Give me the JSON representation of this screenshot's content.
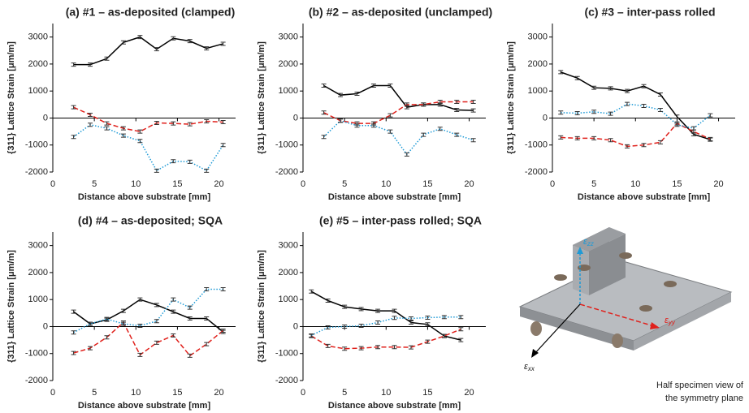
{
  "chart_data": [
    {
      "type": "line",
      "title": "(a) #1 – as-deposited (clamped)",
      "x_label": "Distance above substrate [mm]",
      "y_label": "{311} Lattice Strain [μm/m]",
      "x": [
        2.5,
        4.5,
        6.5,
        8.5,
        10.5,
        12.5,
        14.5,
        16.5,
        18.5,
        20.5
      ],
      "series": [
        {
          "color": "#000000",
          "dash": "solid",
          "values": [
            1980,
            1980,
            2200,
            2800,
            3000,
            2550,
            2950,
            2850,
            2580,
            2750
          ],
          "errors": [
            60,
            60,
            60,
            60,
            60,
            60,
            60,
            60,
            60,
            60
          ]
        },
        {
          "color": "#e0201b",
          "dash": "dashed",
          "values": [
            400,
            120,
            -200,
            -380,
            -500,
            -180,
            -200,
            -230,
            -120,
            -150
          ],
          "errors": [
            60,
            60,
            60,
            60,
            60,
            60,
            60,
            60,
            60,
            60
          ]
        },
        {
          "color": "#1e9ad6",
          "dash": "dotted",
          "values": [
            -700,
            -250,
            -380,
            -650,
            -850,
            -1950,
            -1600,
            -1620,
            -1950,
            -1000
          ],
          "errors": [
            60,
            60,
            60,
            60,
            60,
            60,
            60,
            60,
            60,
            60
          ]
        }
      ],
      "xlim": [
        0,
        22
      ],
      "xticks": [
        0,
        5,
        10,
        15,
        20
      ],
      "ylim": [
        -2000,
        3500
      ],
      "yticks": [
        -2000,
        -1000,
        0,
        1000,
        2000,
        3000
      ],
      "grid": false
    },
    {
      "type": "line",
      "title": "(b) #2 – as-deposited (unclamped)",
      "x_label": "Distance above substrate [mm]",
      "y_label": "{311} Lattice Strain [μm/m]",
      "x": [
        2.5,
        4.5,
        6.5,
        8.5,
        10.5,
        12.5,
        14.5,
        16.5,
        18.5,
        20.5
      ],
      "series": [
        {
          "color": "#000000",
          "dash": "solid",
          "values": [
            1200,
            850,
            900,
            1200,
            1200,
            400,
            500,
            500,
            300,
            280
          ],
          "errors": [
            60,
            60,
            60,
            60,
            60,
            60,
            60,
            60,
            60,
            60
          ]
        },
        {
          "color": "#e0201b",
          "dash": "dashed",
          "values": [
            200,
            -100,
            -200,
            -200,
            100,
            500,
            500,
            600,
            600,
            600
          ],
          "errors": [
            60,
            60,
            60,
            60,
            60,
            60,
            60,
            60,
            60,
            60
          ]
        },
        {
          "color": "#1e9ad6",
          "dash": "dotted",
          "values": [
            -700,
            -100,
            -280,
            -280,
            -500,
            -1350,
            -620,
            -400,
            -620,
            -820
          ],
          "errors": [
            60,
            60,
            60,
            60,
            60,
            60,
            60,
            60,
            60,
            60
          ]
        }
      ],
      "xlim": [
        0,
        22
      ],
      "xticks": [
        0,
        5,
        10,
        15,
        20
      ],
      "ylim": [
        -2000,
        3500
      ],
      "yticks": [
        -2000,
        -1000,
        0,
        1000,
        2000,
        3000
      ],
      "grid": false
    },
    {
      "type": "line",
      "title": "(c) #3 – inter-pass rolled",
      "x_label": "Distance above substrate [mm]",
      "y_label": "{311} Lattice Strain [μm/m]",
      "x": [
        1,
        3,
        5,
        7,
        9,
        11,
        13,
        15,
        17,
        19
      ],
      "series": [
        {
          "color": "#000000",
          "dash": "solid",
          "values": [
            1700,
            1480,
            1120,
            1100,
            1000,
            1180,
            870,
            50,
            -600,
            -800
          ],
          "errors": [
            60,
            60,
            60,
            60,
            60,
            60,
            60,
            60,
            60,
            60
          ]
        },
        {
          "color": "#e0201b",
          "dash": "dashed",
          "values": [
            -720,
            -750,
            -750,
            -820,
            -1050,
            -1000,
            -900,
            -200,
            -500,
            -780
          ],
          "errors": [
            60,
            60,
            60,
            60,
            60,
            60,
            60,
            60,
            60,
            60
          ]
        },
        {
          "color": "#1e9ad6",
          "dash": "dotted",
          "values": [
            200,
            180,
            230,
            160,
            520,
            450,
            300,
            -250,
            -380,
            100
          ],
          "errors": [
            60,
            60,
            60,
            60,
            60,
            60,
            60,
            60,
            60,
            60
          ]
        }
      ],
      "xlim": [
        0,
        22
      ],
      "xticks": [
        0,
        5,
        10,
        15,
        20
      ],
      "ylim": [
        -2000,
        3500
      ],
      "yticks": [
        -2000,
        -1000,
        0,
        1000,
        2000,
        3000
      ],
      "grid": false
    },
    {
      "type": "line",
      "title": "(d) #4 – as-deposited; SQA",
      "x_label": "Distance above substrate [mm]",
      "y_label": "{311} Lattice Strain [μm/m]",
      "x": [
        2.5,
        4.5,
        6.5,
        8.5,
        10.5,
        12.5,
        14.5,
        16.5,
        18.5,
        20.5
      ],
      "series": [
        {
          "color": "#000000",
          "dash": "solid",
          "values": [
            550,
            100,
            250,
            580,
            1000,
            800,
            550,
            300,
            300,
            -200
          ],
          "errors": [
            60,
            60,
            60,
            60,
            60,
            60,
            60,
            60,
            60,
            60
          ]
        },
        {
          "color": "#e0201b",
          "dash": "dashed",
          "values": [
            -980,
            -800,
            -400,
            150,
            -1050,
            -600,
            -330,
            -1080,
            -650,
            -150
          ],
          "errors": [
            60,
            60,
            60,
            60,
            60,
            60,
            60,
            60,
            60,
            60
          ]
        },
        {
          "color": "#1e9ad6",
          "dash": "dotted",
          "values": [
            -220,
            100,
            280,
            100,
            30,
            200,
            1000,
            700,
            1380,
            1380
          ],
          "errors": [
            60,
            60,
            60,
            60,
            60,
            60,
            60,
            60,
            60,
            60
          ]
        }
      ],
      "xlim": [
        0,
        22
      ],
      "xticks": [
        0,
        5,
        10,
        15,
        20
      ],
      "ylim": [
        -2000,
        3500
      ],
      "yticks": [
        -2000,
        -1000,
        0,
        1000,
        2000,
        3000
      ],
      "grid": false
    },
    {
      "type": "line",
      "title": "(e) #5 – inter-pass rolled; SQA",
      "x_label": "Distance above substrate [mm]",
      "y_label": "{311} Lattice Strain [μm/m]",
      "x": [
        1,
        3,
        5,
        7,
        9,
        11,
        13,
        15,
        17,
        19
      ],
      "series": [
        {
          "color": "#000000",
          "dash": "solid",
          "values": [
            1300,
            960,
            730,
            650,
            580,
            580,
            150,
            80,
            -350,
            -500
          ],
          "errors": [
            60,
            60,
            60,
            60,
            60,
            60,
            60,
            60,
            60,
            60
          ]
        },
        {
          "color": "#e0201b",
          "dash": "dashed",
          "values": [
            -350,
            -720,
            -820,
            -800,
            -760,
            -760,
            -770,
            -560,
            -350,
            -100
          ],
          "errors": [
            60,
            60,
            60,
            60,
            60,
            60,
            60,
            60,
            60,
            60
          ]
        },
        {
          "color": "#1e9ad6",
          "dash": "dotted",
          "values": [
            -330,
            -30,
            0,
            30,
            150,
            320,
            300,
            330,
            350,
            350
          ],
          "errors": [
            60,
            60,
            60,
            60,
            60,
            60,
            60,
            60,
            60,
            60
          ]
        }
      ],
      "xlim": [
        0,
        22
      ],
      "xticks": [
        0,
        5,
        10,
        15,
        20
      ],
      "ylim": [
        -2000,
        3500
      ],
      "yticks": [
        -2000,
        -1000,
        0,
        1000,
        2000,
        3000
      ],
      "grid": false
    }
  ],
  "illustration": {
    "axes": [
      {
        "symbol": "ε",
        "subscript": "zz"
      },
      {
        "symbol": "ε",
        "subscript": "yy"
      },
      {
        "symbol": "ε",
        "subscript": "xx"
      }
    ],
    "caption": [
      "Half specimen view of",
      "the symmetry plane"
    ]
  }
}
